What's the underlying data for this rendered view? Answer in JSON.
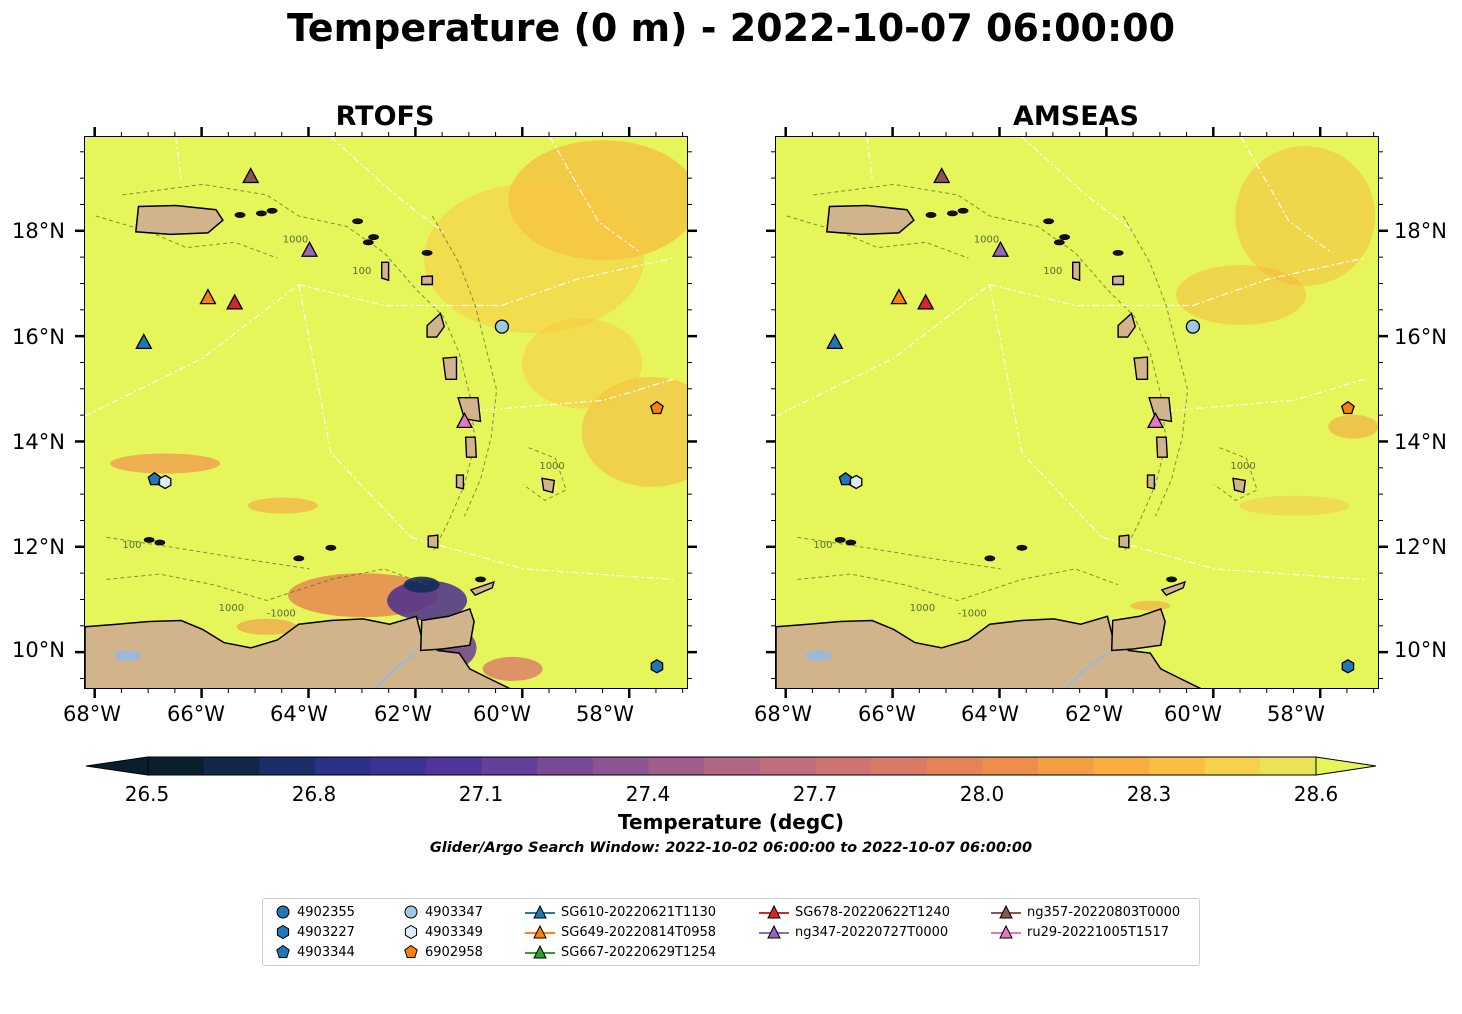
{
  "title": "Temperature (0 m) - 2022-10-07 06:00:00",
  "panels": [
    {
      "title": "RTOFS"
    },
    {
      "title": "AMSEAS"
    }
  ],
  "axes": {
    "x_ticks": [
      "68°W",
      "66°W",
      "64°W",
      "62°W",
      "60°W",
      "58°W"
    ],
    "y_ticks": [
      "18°N",
      "16°N",
      "14°N",
      "12°N",
      "10°N"
    ],
    "lon_range": [
      -68.2,
      -56.9
    ],
    "lat_range": [
      9.3,
      19.8
    ]
  },
  "contour_labels": [
    "1000",
    "100",
    "-1000"
  ],
  "colorbar": {
    "title": "Temperature (degC)",
    "ticks": [
      "26.5",
      "26.8",
      "27.1",
      "27.4",
      "27.7",
      "28.0",
      "28.3",
      "28.6"
    ],
    "range": [
      26.5,
      28.6
    ],
    "extend": "both"
  },
  "search_window": "Glider/Argo Search Window: 2022-10-02 06:00:00 to 2022-10-07 06:00:00",
  "colors": {
    "ocean_base": "#e6f65a",
    "land": "#d2b48c",
    "lake": "#9ab8d8"
  },
  "legend": {
    "items": [
      {
        "label": "4902355",
        "marker": "circle",
        "color": "#1f77b4"
      },
      {
        "label": "4903227",
        "marker": "hexagon",
        "color": "#1f77b4"
      },
      {
        "label": "4903344",
        "marker": "pentagon",
        "color": "#1f77b4"
      },
      {
        "label": "4903347",
        "marker": "circle",
        "color": "#9ecae1"
      },
      {
        "label": "4903349",
        "marker": "hexagon",
        "color": "#deebf7"
      },
      {
        "label": "6902958",
        "marker": "pentagon",
        "color": "#ff7f0e"
      },
      {
        "label": "SG610-20220621T1130",
        "marker": "triangle",
        "color": "#1f77b4"
      },
      {
        "label": "SG649-20220814T0958",
        "marker": "triangle",
        "color": "#ff7f0e"
      },
      {
        "label": "SG667-20220629T1254",
        "marker": "triangle",
        "color": "#2ca02c"
      },
      {
        "label": "SG678-20220622T1240",
        "marker": "triangle",
        "color": "#d62728"
      },
      {
        "label": "ng347-20220727T0000",
        "marker": "triangle",
        "color": "#9467bd"
      },
      {
        "label": "ng357-20220803T0000",
        "marker": "triangle",
        "color": "#8c564b"
      },
      {
        "label": "ru29-20221005T1517",
        "marker": "triangle",
        "color": "#e377c2"
      }
    ]
  },
  "observations": [
    {
      "id": "4903344",
      "lon": -66.9,
      "lat": 13.3
    },
    {
      "id": "4903349",
      "lon": -66.7,
      "lat": 13.25
    },
    {
      "id": "4903347",
      "lon": -60.4,
      "lat": 16.2
    },
    {
      "id": "6902958",
      "lon": -57.5,
      "lat": 14.65
    },
    {
      "id": "4903227",
      "lon": -57.5,
      "lat": 9.75
    },
    {
      "id": "SG610-20220621T1130",
      "lon": -67.1,
      "lat": 15.9
    },
    {
      "id": "SG649-20220814T0958",
      "lon": -65.9,
      "lat": 16.75
    },
    {
      "id": "SG678-20220622T1240",
      "lon": -65.4,
      "lat": 16.65
    },
    {
      "id": "ng347-20220727T0000",
      "lon": -64.0,
      "lat": 17.65
    },
    {
      "id": "ng357-20220803T0000",
      "lon": -65.1,
      "lat": 19.05
    },
    {
      "id": "ru29-20221005T1517",
      "lon": -61.1,
      "lat": 14.4
    }
  ]
}
